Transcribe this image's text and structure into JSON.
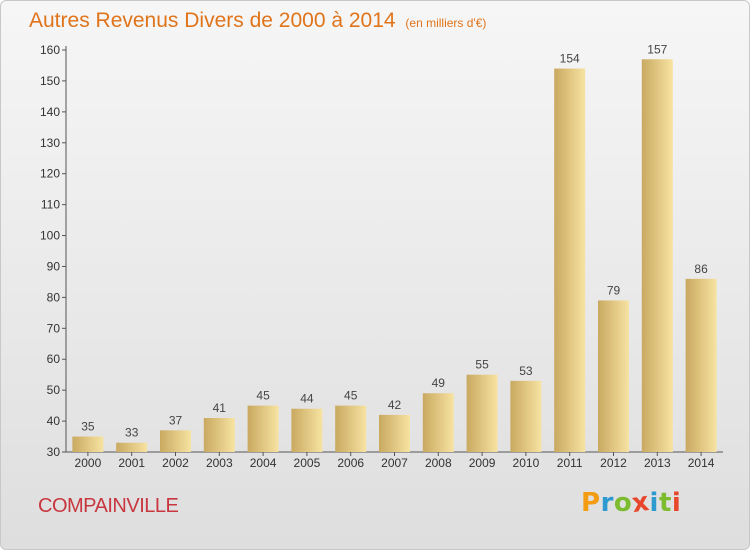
{
  "header": {
    "title": "Autres Revenus Divers de 2000 à 2014",
    "subtitle": "(en milliers d'€)"
  },
  "footer": {
    "place": "COMPAINVILLE",
    "brand_letters": [
      "P",
      "r",
      "o",
      "x",
      "i",
      "t",
      "i"
    ],
    "brand_colors": [
      "#f39c12",
      "#2e9ad0",
      "#7dbb2f",
      "#e8462b",
      "#2e9ad0",
      "#7dbb2f",
      "#e8462b"
    ]
  },
  "colors": {
    "bar_light": "#f7e3a2",
    "bar_dark": "#c9a960",
    "title": "#e0741b",
    "place": "#c8373f"
  },
  "chart_data": {
    "type": "bar",
    "title": "Autres Revenus Divers de 2000 à 2014",
    "subtitle": "(en milliers d'€)",
    "categories": [
      "2000",
      "2001",
      "2002",
      "2003",
      "2004",
      "2005",
      "2006",
      "2007",
      "2008",
      "2009",
      "2010",
      "2011",
      "2012",
      "2013",
      "2014"
    ],
    "values": [
      35,
      33,
      37,
      41,
      45,
      44,
      45,
      42,
      49,
      55,
      53,
      154,
      79,
      157,
      86
    ],
    "ylim": [
      30,
      160
    ],
    "yticks": [
      30,
      40,
      50,
      60,
      70,
      80,
      90,
      100,
      110,
      120,
      130,
      140,
      150,
      160
    ],
    "grid": false,
    "legend": "none"
  }
}
